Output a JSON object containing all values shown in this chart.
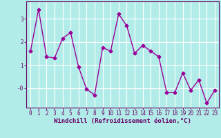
{
  "x": [
    0,
    1,
    2,
    3,
    4,
    5,
    6,
    7,
    8,
    9,
    10,
    11,
    12,
    13,
    14,
    15,
    16,
    17,
    18,
    19,
    20,
    21,
    22,
    23
  ],
  "y": [
    1.6,
    3.4,
    1.35,
    1.3,
    2.15,
    2.4,
    0.9,
    -0.05,
    -0.3,
    1.75,
    1.6,
    3.2,
    2.7,
    1.5,
    1.85,
    1.6,
    1.35,
    -0.2,
    -0.2,
    0.65,
    -0.1,
    0.35,
    -0.65,
    -0.1
  ],
  "line_color": "#990099",
  "marker": "D",
  "marker_size": 2.5,
  "linewidth": 1.0,
  "bg_color": "#b2ece8",
  "grid_color": "#ffffff",
  "xlabel": "Windchill (Refroidissement éolien,°C)",
  "xlabel_fontsize": 6.5,
  "xlabel_color": "#660066",
  "tick_color": "#660066",
  "tick_fontsize": 5.5,
  "ytick_labels": [
    "-0",
    "1",
    "2",
    "3"
  ],
  "ylim": [
    -0.85,
    3.75
  ],
  "xlim": [
    -0.5,
    23.5
  ]
}
